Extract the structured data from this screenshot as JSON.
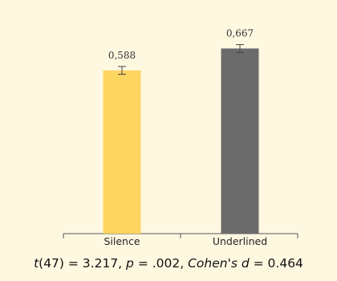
{
  "chart_data": {
    "type": "bar",
    "categories": [
      "Silence",
      "Underlined"
    ],
    "values": [
      0.588,
      0.667
    ],
    "value_labels": [
      "0,588",
      "0,667"
    ],
    "error": [
      0.014,
      0.014
    ],
    "colors": [
      "#fdd561",
      "#6b6b6b"
    ],
    "ylim": [
      0,
      0.7
    ],
    "grid": false,
    "legend": "none"
  },
  "stats": {
    "t_symbol": "t",
    "df": "(47)",
    "t_value": " = 3.217, ",
    "p_symbol": "p",
    "p_value": " = .002, ",
    "d_symbol": "Cohen's d",
    "d_value": " = 0.464"
  }
}
